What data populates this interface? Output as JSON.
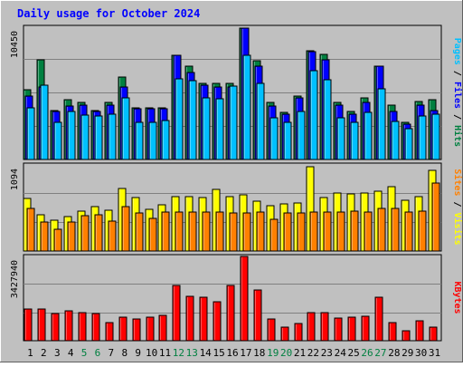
{
  "title": "Daily usage for October 2024",
  "colors": {
    "background": "#c0c0c0",
    "hits": "#008040",
    "files": "#0000ff",
    "pages": "#00c0ff",
    "visits": "#ffff00",
    "sites": "#ff8000",
    "kbytes": "#ff0000",
    "title_text": "#0000ff",
    "weekend_day": "#008040"
  },
  "chart_data": [
    {
      "type": "bar",
      "panel": "hits-files-pages",
      "y_max_label": "10450",
      "ylim": [
        0,
        10450
      ],
      "grid": true,
      "axis_label": {
        "parts": [
          {
            "text": "Pages",
            "series": "pages"
          },
          {
            "text": " / ",
            "series": null
          },
          {
            "text": "Files",
            "series": "files"
          },
          {
            "text": " / ",
            "series": null
          },
          {
            "text": "Hits",
            "series": "hits"
          }
        ]
      },
      "categories": [
        "1",
        "2",
        "3",
        "4",
        "5",
        "6",
        "7",
        "8",
        "9",
        "10",
        "11",
        "12",
        "13",
        "14",
        "15",
        "16",
        "17",
        "18",
        "19",
        "20",
        "21",
        "22",
        "23",
        "24",
        "25",
        "26",
        "27",
        "28",
        "29",
        "30",
        "31"
      ],
      "series": [
        {
          "name": "Hits",
          "color_key": "hits",
          "values": [
            5500,
            7900,
            3900,
            4700,
            4500,
            3900,
            4500,
            6500,
            4100,
            4100,
            4100,
            8200,
            7400,
            6000,
            6000,
            6000,
            10400,
            7800,
            4500,
            3700,
            5000,
            8600,
            8300,
            4500,
            3800,
            4900,
            7400,
            4300,
            2900,
            4600,
            4700
          ]
        },
        {
          "name": "Files",
          "color_key": "files",
          "values": [
            5000,
            5700,
            3800,
            4200,
            4300,
            3800,
            4300,
            5700,
            4000,
            4000,
            4000,
            8200,
            6900,
            5900,
            5700,
            5700,
            10400,
            7400,
            4200,
            3600,
            4900,
            8500,
            7900,
            4300,
            3600,
            4500,
            7400,
            3800,
            2800,
            4300,
            3900
          ]
        },
        {
          "name": "Pages",
          "color_key": "pages",
          "values": [
            4100,
            5900,
            2900,
            3800,
            3500,
            3400,
            3600,
            4900,
            2900,
            2900,
            3100,
            6400,
            6200,
            4900,
            4800,
            5800,
            8200,
            6000,
            3300,
            2900,
            3800,
            7000,
            6300,
            3300,
            2900,
            3700,
            5600,
            3000,
            2400,
            3400,
            3600
          ]
        }
      ]
    },
    {
      "type": "bar",
      "panel": "visits-sites",
      "y_max_label": "1094",
      "ylim": [
        0,
        1094
      ],
      "grid": true,
      "axis_label": {
        "parts": [
          {
            "text": "Sites",
            "series": "sites"
          },
          {
            "text": " / ",
            "series": null
          },
          {
            "text": "Visits",
            "series": "visits"
          }
        ]
      },
      "categories": [
        "1",
        "2",
        "3",
        "4",
        "5",
        "6",
        "7",
        "8",
        "9",
        "10",
        "11",
        "12",
        "13",
        "14",
        "15",
        "16",
        "17",
        "18",
        "19",
        "20",
        "21",
        "22",
        "23",
        "24",
        "25",
        "26",
        "27",
        "28",
        "29",
        "30",
        "31"
      ],
      "series": [
        {
          "name": "Visits",
          "color_key": "visits",
          "values": [
            670,
            460,
            390,
            440,
            510,
            570,
            520,
            790,
            680,
            530,
            590,
            690,
            690,
            680,
            780,
            690,
            710,
            630,
            580,
            600,
            610,
            1070,
            680,
            740,
            730,
            740,
            760,
            820,
            640,
            690,
            1020
          ]
        },
        {
          "name": "Sites",
          "color_key": "sites",
          "values": [
            540,
            370,
            280,
            370,
            450,
            460,
            380,
            560,
            480,
            410,
            490,
            500,
            500,
            500,
            500,
            480,
            480,
            490,
            400,
            480,
            480,
            490,
            490,
            500,
            510,
            490,
            540,
            540,
            490,
            510,
            860
          ]
        }
      ]
    },
    {
      "type": "bar",
      "panel": "kbytes",
      "y_max_label": "3427940",
      "ylim": [
        0,
        3427940
      ],
      "grid": true,
      "axis_label": {
        "parts": [
          {
            "text": "KBytes",
            "series": "kbytes"
          }
        ]
      },
      "categories": [
        "1",
        "2",
        "3",
        "4",
        "5",
        "6",
        "7",
        "8",
        "9",
        "10",
        "11",
        "12",
        "13",
        "14",
        "15",
        "16",
        "17",
        "18",
        "19",
        "20",
        "21",
        "22",
        "23",
        "24",
        "25",
        "26",
        "27",
        "28",
        "29",
        "30",
        "31"
      ],
      "series": [
        {
          "name": "KBytes",
          "color_key": "kbytes",
          "values": [
            1280000,
            1280000,
            1110000,
            1200000,
            1160000,
            1110000,
            730000,
            960000,
            890000,
            950000,
            1030000,
            2240000,
            1790000,
            1760000,
            1600000,
            2260000,
            3420000,
            2060000,
            900000,
            570000,
            690000,
            1150000,
            1160000,
            920000,
            970000,
            980000,
            1770000,
            720000,
            400000,
            810000,
            560000
          ]
        }
      ]
    }
  ],
  "x_axis": {
    "day_labels": [
      "1",
      "2",
      "3",
      "4",
      "5",
      "6",
      "7",
      "8",
      "9",
      "10",
      "11",
      "12",
      "13",
      "14",
      "15",
      "16",
      "17",
      "18",
      "19",
      "20",
      "21",
      "22",
      "23",
      "24",
      "25",
      "26",
      "27",
      "28",
      "29",
      "30",
      "31"
    ],
    "weekend_days": [
      "5",
      "6",
      "12",
      "13",
      "19",
      "20",
      "26",
      "27"
    ]
  }
}
